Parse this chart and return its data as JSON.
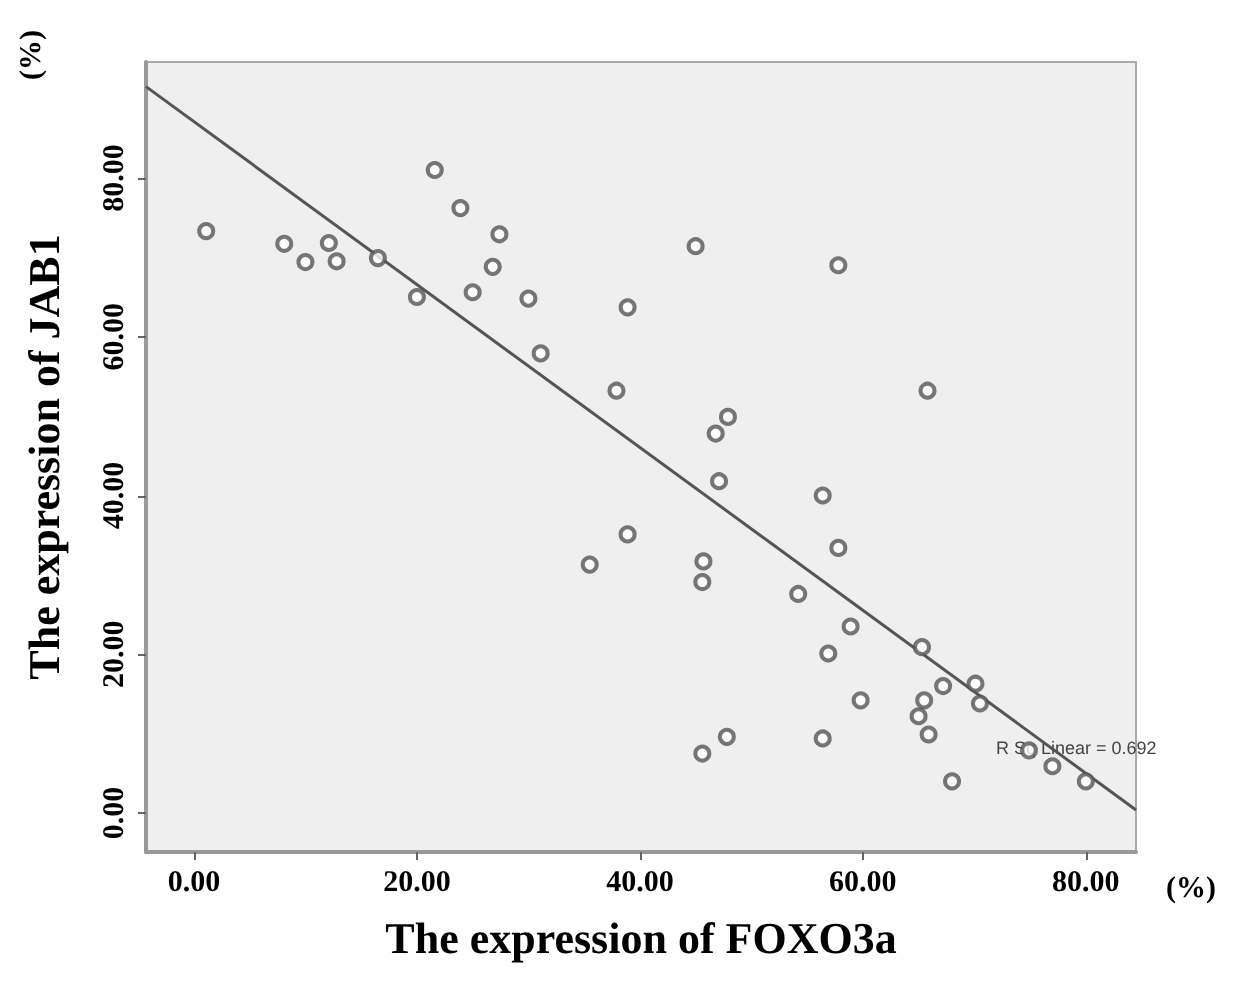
{
  "chart_data": {
    "type": "scatter",
    "xlabel": "The expression of FOXO3a",
    "ylabel": "The expression of JAB1",
    "x": [
      1.1,
      8.1,
      10.0,
      12.1,
      12.8,
      16.5,
      20.0,
      21.6,
      23.9,
      27.4,
      26.8,
      25.0,
      30.0,
      31.1,
      38.9,
      37.9,
      45.0,
      57.8,
      65.8,
      47.9,
      46.8,
      47.1,
      56.4,
      35.5,
      38.9,
      45.7,
      45.6,
      57.8,
      54.2,
      58.9,
      56.9,
      65.3,
      59.8,
      67.2,
      70.1,
      70.5,
      65.5,
      65.0,
      65.9,
      47.8,
      45.6,
      56.4,
      74.9,
      77.0,
      68.0,
      80.0
    ],
    "series": [
      {
        "color": "#555555",
        "values": [
          73.3,
          71.7,
          69.4,
          71.8,
          69.5,
          69.9,
          65.0,
          81.0,
          76.2,
          72.9,
          68.8,
          65.6,
          64.8,
          57.9,
          63.7,
          53.2,
          71.4,
          69.0,
          53.2,
          49.9,
          47.8,
          41.8,
          40.0,
          31.3,
          35.1,
          31.7,
          29.1,
          33.4,
          27.6,
          23.5,
          20.1,
          20.9,
          14.2,
          16.0,
          16.3,
          13.8,
          14.2,
          12.2,
          9.9,
          9.6,
          7.5,
          9.4,
          7.9,
          5.9,
          4.0,
          4.0
        ]
      },
      {
        "type": "line",
        "color": "#555555",
        "marker": "none",
        "x": [
          -4.3,
          84.5
        ],
        "values": [
          91.5,
          0.4
        ]
      }
    ],
    "xlim": [
      -4.3,
      84.5
    ],
    "ylim": [
      -4.9,
      94.6
    ],
    "xticks": [
      {
        "value": 0,
        "label": "0.00"
      },
      {
        "value": 20,
        "label": "20.00"
      },
      {
        "value": 40,
        "label": "40.00"
      },
      {
        "value": 60,
        "label": "60.00"
      },
      {
        "value": 80,
        "label": "80.00"
      }
    ],
    "yticks": [
      {
        "value": 0,
        "label": "0.00"
      },
      {
        "value": 20,
        "label": "20.00"
      },
      {
        "value": 40,
        "label": "40.00"
      },
      {
        "value": 60,
        "label": "60.00"
      },
      {
        "value": 80,
        "label": "80.00"
      }
    ],
    "marker": "circle",
    "grid": false,
    "annotations": [
      "(%)",
      "(%)",
      "R Sq Linear = 0.692"
    ]
  }
}
